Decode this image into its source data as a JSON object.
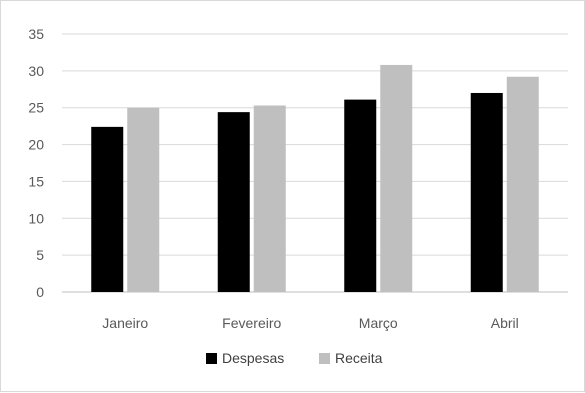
{
  "chart_data": {
    "type": "bar",
    "title": "",
    "xlabel": "",
    "ylabel": "",
    "categories": [
      "Janeiro",
      "Fevereiro",
      "Março",
      "Abril"
    ],
    "series": [
      {
        "name": "Despesas",
        "values": [
          22.4,
          24.4,
          26.1,
          27.0
        ],
        "color": "#000000"
      },
      {
        "name": "Receita",
        "values": [
          25.0,
          25.3,
          30.8,
          29.2
        ],
        "color": "#bfbfbf"
      }
    ],
    "ylim": [
      0,
      35
    ],
    "yticks": [
      0,
      5,
      10,
      15,
      20,
      25,
      30,
      35
    ],
    "grid": true,
    "legend_position": "bottom"
  }
}
